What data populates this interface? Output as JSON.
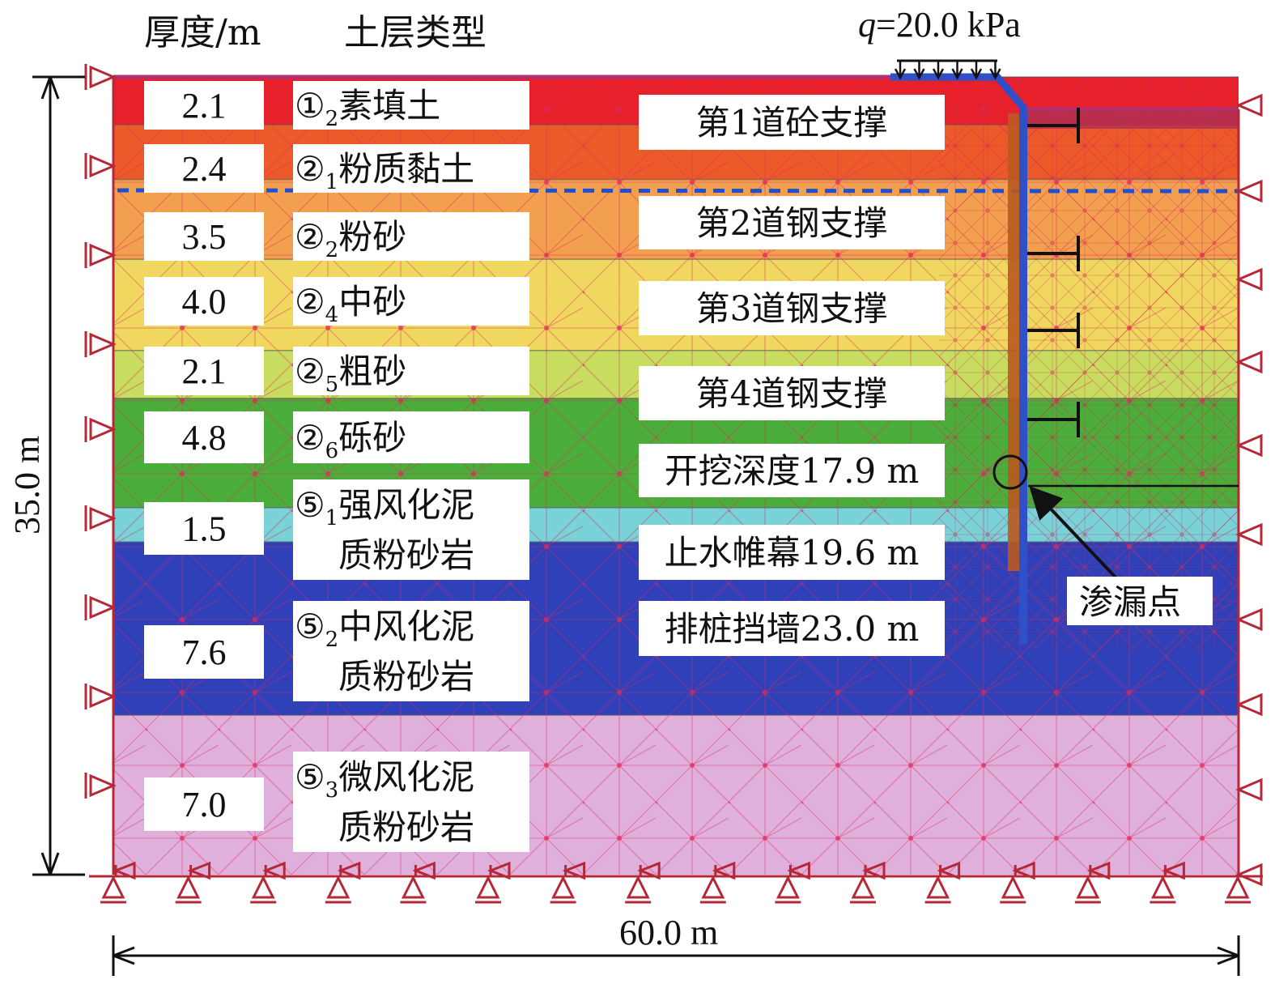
{
  "headers": {
    "thickness": "厚度/m",
    "soil_type": "土层类型"
  },
  "load": {
    "q_symbol": "q",
    "q_value": "=20.0 kPa"
  },
  "layers": [
    {
      "thickness": "2.1",
      "circle": "①",
      "sub": "2",
      "name": "素填土",
      "name2": "",
      "color": "#e8202a"
    },
    {
      "thickness": "2.4",
      "circle": "②",
      "sub": "1",
      "name": "粉质黏土",
      "name2": "",
      "color": "#ec5a2a"
    },
    {
      "thickness": "3.5",
      "circle": "②",
      "sub": "2",
      "name": "粉砂",
      "name2": "",
      "color": "#f2a050"
    },
    {
      "thickness": "4.0",
      "circle": "②",
      "sub": "4",
      "name": "中砂",
      "name2": "",
      "color": "#f0d860"
    },
    {
      "thickness": "2.1",
      "circle": "②",
      "sub": "5",
      "name": "粗砂",
      "name2": "",
      "color": "#c8dc60"
    },
    {
      "thickness": "4.8",
      "circle": "②",
      "sub": "6",
      "name": "砾砂",
      "name2": "",
      "color": "#4cae3a"
    },
    {
      "thickness": "1.5",
      "circle": "⑤",
      "sub": "1",
      "name": "强风化泥",
      "name2": "质粉砂岩",
      "color": "#78d2d8"
    },
    {
      "thickness": "7.6",
      "circle": "⑤",
      "sub": "2",
      "name": "中风化泥",
      "name2": "质粉砂岩",
      "color": "#3040b8"
    },
    {
      "thickness": "7.0",
      "circle": "⑤",
      "sub": "3",
      "name": "微风化泥",
      "name2": "质粉砂岩",
      "color": "#e0b0dc"
    }
  ],
  "supports": [
    {
      "label": "第1道砼支撑"
    },
    {
      "label": "第2道钢支撑"
    },
    {
      "label": "第3道钢支撑"
    },
    {
      "label": "第4道钢支撑"
    }
  ],
  "depths": [
    {
      "label": "开挖深度17.9 m"
    },
    {
      "label": "止水帷幕19.6 m"
    },
    {
      "label": "排桩挡墙23.0 m"
    }
  ],
  "leak_label": "渗漏点",
  "dim_height": "35.0 m",
  "dim_width": "60.0 m",
  "colors": {
    "support_line": "#b42838",
    "wall": "#3050c8",
    "water_table": "#2050d0"
  }
}
